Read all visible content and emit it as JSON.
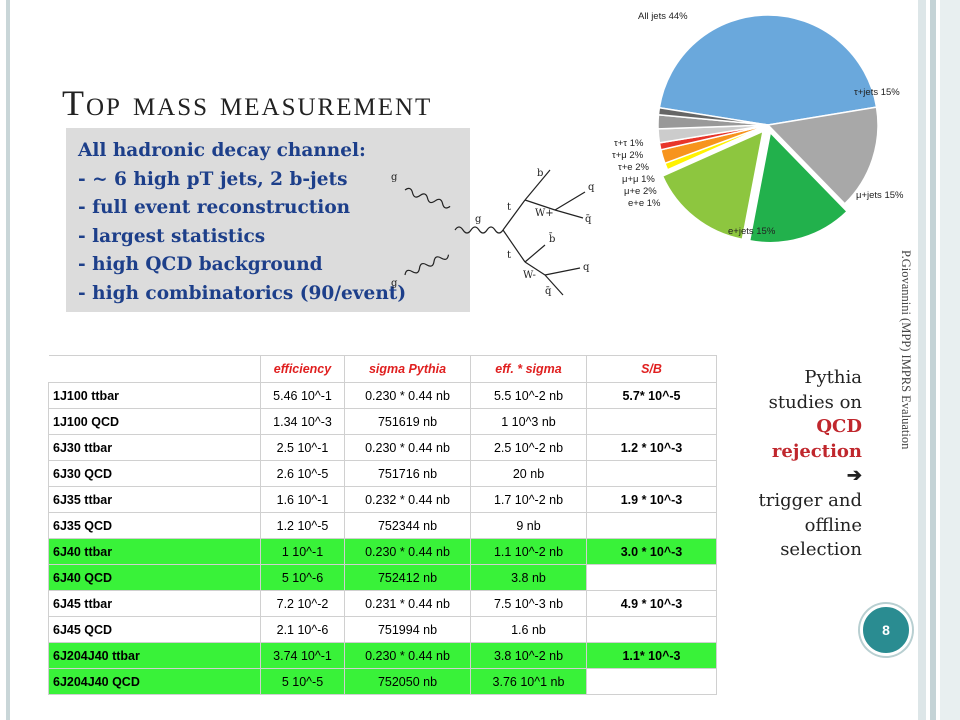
{
  "slide": {
    "title": "Top mass measurement",
    "page_number": "8",
    "vertical_note": "P.Giovannini (MPP)  IMPRS Evaluation"
  },
  "info_box": {
    "lines": [
      "All hadronic decay channel:",
      "- ~ 6 high pT jets, 2 b-jets",
      "- full event reconstruction",
      "- largest statistics",
      "- high QCD background",
      "- high combinatorics (90/event)"
    ]
  },
  "side_note": {
    "line1": "Pythia",
    "line2": "studies on",
    "line3": "QCD",
    "line4": "rejection",
    "arrow": "➔",
    "line5": "trigger and",
    "line6": "offline",
    "line7": "selection"
  },
  "feynman": {
    "labels": [
      "g",
      "g",
      "g",
      "t",
      "t",
      "b",
      "q",
      "W+",
      "q̄",
      "b̄",
      "W-",
      "q",
      "q̄"
    ]
  },
  "pie": {
    "labels": {
      "all_jets": "All jets 44%",
      "tau_jets": "τ+jets 15%",
      "mu_jets": "μ+jets 15%",
      "e_jets": "e+jets 15%",
      "tautau": "τ+τ   1%",
      "taumu": "τ+μ   2%",
      "taue": "τ+e   2%",
      "mumu": "μ+μ   1%",
      "mue": "μ+e   2%",
      "ee": "e+e   1%"
    },
    "colors": {
      "all_jets": "#6aa8dc",
      "tau_jets": "#a8a8a8",
      "mu_jets": "#22b14c",
      "e_jets": "#8dc63f",
      "ee": "#fff200",
      "mue": "#f7941d",
      "mumu": "#e8352a",
      "taue": "#cccccc",
      "taumu": "#999999",
      "tautau": "#666666"
    },
    "slices": [
      {
        "key": "all_jets",
        "value": 44
      },
      {
        "key": "tau_jets",
        "value": 15
      },
      {
        "key": "mu_jets",
        "value": 15
      },
      {
        "key": "e_jets",
        "value": 15
      },
      {
        "key": "ee",
        "value": 1
      },
      {
        "key": "mue",
        "value": 2
      },
      {
        "key": "mumu",
        "value": 1
      },
      {
        "key": "taue",
        "value": 2
      },
      {
        "key": "taumu",
        "value": 2
      },
      {
        "key": "tautau",
        "value": 1
      }
    ]
  },
  "table": {
    "headers": [
      "",
      "efficiency",
      "sigma Pythia",
      "eff. * sigma",
      "S/B"
    ],
    "rows": [
      {
        "label": "1J100 ttbar",
        "efficiency": "5.46 10^-1",
        "sigma": "0.230 * 0.44 nb",
        "eff_sigma": "5.5 10^-2 nb",
        "sb": "5.7* 10^-5",
        "highlight": false
      },
      {
        "label": "1J100 QCD",
        "efficiency": "1.34 10^-3",
        "sigma": "751619 nb",
        "eff_sigma": "1 10^3 nb",
        "sb": "",
        "highlight": false
      },
      {
        "label": "6J30 ttbar",
        "efficiency": "2.5 10^-1",
        "sigma": "0.230 * 0.44 nb",
        "eff_sigma": "2.5 10^-2 nb",
        "sb": "1.2 * 10^-3",
        "highlight": false
      },
      {
        "label": "6J30 QCD",
        "efficiency": "2.6 10^-5",
        "sigma": "751716 nb",
        "eff_sigma": "20 nb",
        "sb": "",
        "highlight": false
      },
      {
        "label": "6J35 ttbar",
        "efficiency": "1.6 10^-1",
        "sigma": "0.232 * 0.44 nb",
        "eff_sigma": "1.7 10^-2 nb",
        "sb": "1.9 * 10^-3",
        "highlight": false
      },
      {
        "label": "6J35 QCD",
        "efficiency": "1.2 10^-5",
        "sigma": "752344 nb",
        "eff_sigma": "9 nb",
        "sb": "",
        "highlight": false
      },
      {
        "label": "6J40 ttbar",
        "efficiency": "1 10^-1",
        "sigma": "0.230 * 0.44 nb",
        "eff_sigma": "1.1 10^-2 nb",
        "sb": "3.0 * 10^-3",
        "highlight": true
      },
      {
        "label": "6J40 QCD",
        "efficiency": "5 10^-6",
        "sigma": "752412 nb",
        "eff_sigma": "3.8 nb",
        "sb": "",
        "highlight": true
      },
      {
        "label": "6J45 ttbar",
        "efficiency": "7.2 10^-2",
        "sigma": "0.231 * 0.44 nb",
        "eff_sigma": "7.5 10^-3 nb",
        "sb": "4.9 * 10^-3",
        "highlight": false
      },
      {
        "label": "6J45 QCD",
        "efficiency": "2.1 10^-6",
        "sigma": "751994 nb",
        "eff_sigma": "1.6 nb",
        "sb": "",
        "highlight": false
      },
      {
        "label": "6J204J40 ttbar",
        "efficiency": "3.74 10^-1",
        "sigma": "0.230 * 0.44 nb",
        "eff_sigma": "3.8 10^-2 nb",
        "sb": "1.1* 10^-3",
        "highlight": true
      },
      {
        "label": "6J204J40 QCD",
        "efficiency": "5 10^-5",
        "sigma": "752050 nb",
        "eff_sigma": "3.76 10^1 nb",
        "sb": "",
        "highlight": true
      }
    ]
  }
}
